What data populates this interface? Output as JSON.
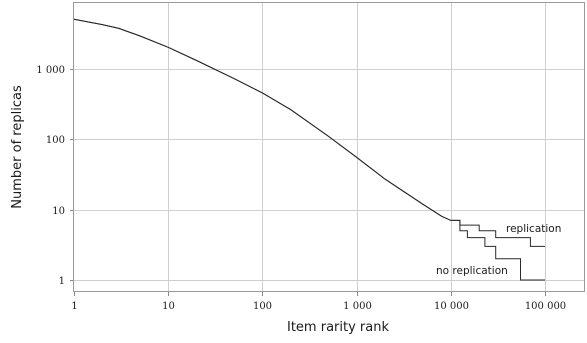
{
  "chart_data": {
    "type": "line",
    "xlabel": "Item rarity rank",
    "ylabel": "Number of replicas",
    "xscale": "log",
    "yscale": "log",
    "xlim": [
      1,
      300000
    ],
    "ylim": [
      0.7,
      5000
    ],
    "grid": true,
    "x_ticks": [
      {
        "value": 1,
        "label": "1"
      },
      {
        "value": 10,
        "label": "10"
      },
      {
        "value": 100,
        "label": "100"
      },
      {
        "value": 1000,
        "label": "1 000"
      },
      {
        "value": 10000,
        "label": "10 000"
      },
      {
        "value": 100000,
        "label": "100 000"
      }
    ],
    "y_ticks": [
      {
        "value": 1,
        "label": "1"
      },
      {
        "value": 10,
        "label": "10"
      },
      {
        "value": 100,
        "label": "100"
      },
      {
        "value": 1000,
        "label": "1 000"
      }
    ],
    "series": [
      {
        "name": "replication",
        "color": "#2a2a2a",
        "points": [
          [
            1,
            5000
          ],
          [
            2,
            4200
          ],
          [
            3,
            3700
          ],
          [
            5,
            2900
          ],
          [
            10,
            2000
          ],
          [
            20,
            1300
          ],
          [
            50,
            720
          ],
          [
            100,
            450
          ],
          [
            200,
            260
          ],
          [
            500,
            110
          ],
          [
            1000,
            55
          ],
          [
            2000,
            27
          ],
          [
            5000,
            12
          ],
          [
            8000,
            8
          ],
          [
            10000,
            7
          ],
          [
            12500,
            7
          ],
          [
            12500,
            6
          ],
          [
            20000,
            6
          ],
          [
            20000,
            5
          ],
          [
            30000,
            5
          ],
          [
            30000,
            4
          ],
          [
            70000,
            4
          ],
          [
            70000,
            3
          ],
          [
            100000,
            3
          ]
        ]
      },
      {
        "name": "no replication",
        "color": "#2a2a2a",
        "points": [
          [
            1,
            5000
          ],
          [
            2,
            4200
          ],
          [
            3,
            3700
          ],
          [
            5,
            2900
          ],
          [
            10,
            2000
          ],
          [
            20,
            1300
          ],
          [
            50,
            720
          ],
          [
            100,
            450
          ],
          [
            200,
            260
          ],
          [
            500,
            110
          ],
          [
            1000,
            55
          ],
          [
            2000,
            27
          ],
          [
            5000,
            12
          ],
          [
            8000,
            8
          ],
          [
            10000,
            7
          ],
          [
            12500,
            7
          ],
          [
            12500,
            5
          ],
          [
            15000,
            5
          ],
          [
            15000,
            4
          ],
          [
            23000,
            4
          ],
          [
            23000,
            3
          ],
          [
            30000,
            3
          ],
          [
            30000,
            2
          ],
          [
            55000,
            2
          ],
          [
            55000,
            1
          ],
          [
            100000,
            1
          ]
        ]
      }
    ]
  }
}
